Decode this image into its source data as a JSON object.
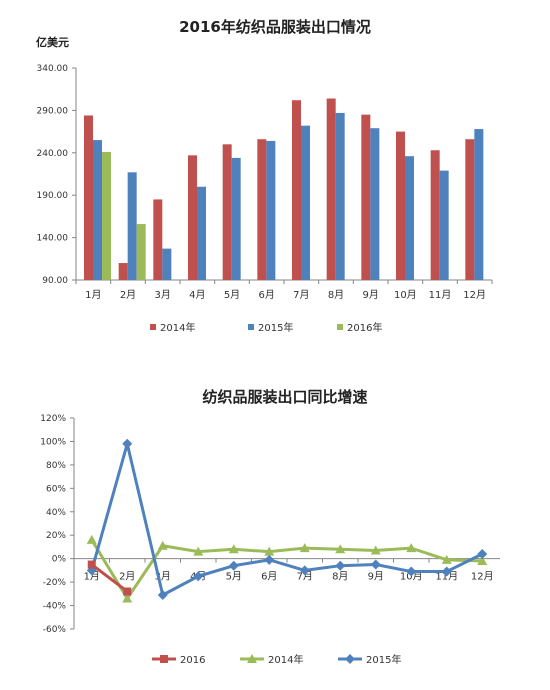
{
  "chart_data": [
    {
      "type": "bar",
      "title": "2016年纺织品服装出口情况",
      "unit_label": "亿美元",
      "categories": [
        "1月",
        "2月",
        "3月",
        "4月",
        "5月",
        "6月",
        "7月",
        "8月",
        "9月",
        "10月",
        "11月",
        "12月"
      ],
      "ylim": [
        90,
        340
      ],
      "yticks": [
        "90.00",
        "140.00",
        "190.00",
        "240.00",
        "290.00",
        "340.00"
      ],
      "ytick_values": [
        90,
        140,
        190,
        240,
        290,
        340
      ],
      "grid": false,
      "legend_position": "bottom",
      "series": [
        {
          "name": "2014年",
          "color": "#c0504d",
          "values": [
            284,
            110,
            185,
            237,
            250,
            256,
            302,
            304,
            285,
            265,
            243,
            256
          ]
        },
        {
          "name": "2015年",
          "color": "#4f81bd",
          "values": [
            255,
            217,
            127,
            200,
            234,
            254,
            272,
            287,
            269,
            236,
            219,
            268
          ]
        },
        {
          "name": "2016年",
          "color": "#9bbb59",
          "values": [
            241,
            156,
            null,
            null,
            null,
            null,
            null,
            null,
            null,
            null,
            null,
            null
          ]
        }
      ]
    },
    {
      "type": "line",
      "title": "纺织品服装出口同比增速",
      "categories": [
        "1月",
        "2月",
        "3月",
        "4月",
        "5月",
        "6月",
        "7月",
        "8月",
        "9月",
        "10月",
        "11月",
        "12月"
      ],
      "ylim": [
        -60,
        120
      ],
      "yticks": [
        "-60%",
        "-40%",
        "-20%",
        "0%",
        "20%",
        "40%",
        "60%",
        "80%",
        "100%",
        "120%"
      ],
      "ytick_values": [
        -60,
        -40,
        -20,
        0,
        20,
        40,
        60,
        80,
        100,
        120
      ],
      "grid": false,
      "legend_position": "bottom",
      "series": [
        {
          "name": "2016",
          "color": "#c0504d",
          "marker": "square",
          "values": [
            -5,
            -28,
            null,
            null,
            null,
            null,
            null,
            null,
            null,
            null,
            null,
            null
          ]
        },
        {
          "name": "2014年",
          "color": "#9bbb59",
          "marker": "triangle",
          "values": [
            16,
            -34,
            11,
            6,
            8,
            6,
            9,
            8,
            7,
            9,
            -1,
            -2
          ]
        },
        {
          "name": "2015年",
          "color": "#4f81bd",
          "marker": "diamond",
          "values": [
            -10,
            98,
            -31,
            -15,
            -6,
            -1,
            -10,
            -6,
            -5,
            -11,
            -11,
            4
          ]
        }
      ]
    }
  ]
}
